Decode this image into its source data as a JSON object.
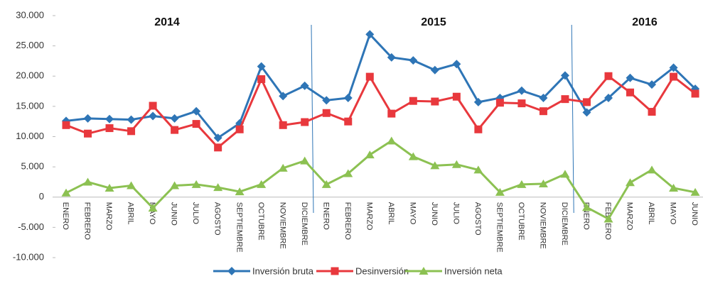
{
  "chart_data": {
    "type": "line",
    "annotations": [
      "2014",
      "2015",
      "2016"
    ],
    "categories": [
      "ENERO",
      "FEBRERO",
      "MARZO",
      "ABRIL",
      "MAYO",
      "JUNIO",
      "JULIO",
      "AGOSTO",
      "SEPTIEMBRE",
      "OCTUBRE",
      "NOVIEMBRE",
      "DICIEMBRE",
      "ENERO",
      "FEBRERO",
      "MARZO",
      "ABRIL",
      "MAYO",
      "JUNIO",
      "JULIO",
      "AGOSTO",
      "SEPTIEMBRE",
      "OCTUBRE",
      "NOVIEMBRE",
      "DICIEMBRE",
      "ENERO",
      "FEBRERO",
      "MARZO",
      "ABRIL",
      "MAYO",
      "JUNIO"
    ],
    "series": [
      {
        "name": "Inversión bruta",
        "color": "#2e75b6",
        "values": [
          12600,
          13000,
          12900,
          12800,
          13400,
          13000,
          14200,
          9800,
          12200,
          21600,
          16700,
          18400,
          16000,
          16400,
          26900,
          23100,
          22600,
          21000,
          22000,
          15700,
          16400,
          17600,
          16400,
          20100,
          14000,
          16400,
          19700,
          18600,
          21400,
          17900
        ]
      },
      {
        "name": "Desinversión",
        "color": "#e8383d",
        "values": [
          11900,
          10500,
          11400,
          10900,
          15100,
          11100,
          12100,
          8200,
          11200,
          19500,
          11900,
          12400,
          13900,
          12500,
          19900,
          13800,
          15900,
          15800,
          16600,
          11200,
          15600,
          15500,
          14200,
          16200,
          15700,
          20000,
          17300,
          14100,
          19900,
          17100
        ]
      },
      {
        "name": "Inversión neta",
        "color": "#8cc152",
        "values": [
          700,
          2500,
          1500,
          1900,
          -1800,
          1900,
          2100,
          1600,
          900,
          2100,
          4800,
          6000,
          2100,
          3900,
          7000,
          9300,
          6700,
          5200,
          5400,
          4500,
          800,
          2100,
          2200,
          3800,
          -1700,
          -3600,
          2400,
          4500,
          1500,
          800
        ]
      }
    ],
    "ylim": [
      -10000,
      30000
    ],
    "yticks": [
      {
        "value": -10000,
        "label": "-10.000"
      },
      {
        "value": -5000,
        "label": "-5.000"
      },
      {
        "value": 0,
        "label": "0"
      },
      {
        "value": 5000,
        "label": "5.000"
      },
      {
        "value": 10000,
        "label": "10.000"
      },
      {
        "value": 15000,
        "label": "15.000"
      },
      {
        "value": 20000,
        "label": "20.000"
      },
      {
        "value": 25000,
        "label": "25.000"
      },
      {
        "value": 30000,
        "label": "30.000"
      }
    ]
  }
}
